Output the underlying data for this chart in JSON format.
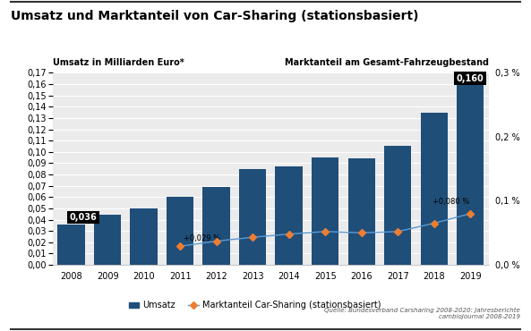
{
  "title": "Umsatz und Marktanteil von Car-Sharing (stationsbasiert)",
  "years": [
    2008,
    2009,
    2010,
    2011,
    2012,
    2013,
    2014,
    2015,
    2016,
    2017,
    2018,
    2019
  ],
  "umsatz": [
    0.036,
    0.044,
    0.05,
    0.06,
    0.069,
    0.085,
    0.087,
    0.095,
    0.094,
    0.105,
    0.135,
    0.16
  ],
  "marktanteil_ratio": [
    null,
    null,
    null,
    0.00029,
    0.00037,
    0.00043,
    0.00048,
    0.00052,
    0.0005,
    0.00052,
    0.00065,
    0.0008
  ],
  "bar_color": "#1F4E79",
  "line_color": "#5B9BD5",
  "marker_color": "#ED7D31",
  "ylabel_left": "Umsatz in Milliarden Euro*",
  "ylabel_right": "Marktanteil am Gesamt-Fahrzeugbestand",
  "ylim_left": [
    0,
    0.17
  ],
  "ylim_right": [
    0,
    0.003
  ],
  "yticks_left": [
    0.0,
    0.01,
    0.02,
    0.03,
    0.04,
    0.05,
    0.06,
    0.07,
    0.08,
    0.09,
    0.1,
    0.11,
    0.12,
    0.13,
    0.14,
    0.15,
    0.16,
    0.17
  ],
  "yticks_right_vals": [
    0.0,
    0.001,
    0.002,
    0.003
  ],
  "yticks_right_labels": [
    "0,0 %",
    "0,1 %",
    "0,2 %",
    "0,3 %"
  ],
  "annotation_2008": "0,036",
  "annotation_2019": "0,160",
  "annotation_2011": "+0,029 %",
  "annotation_2019_line": "+0,080 %",
  "legend_bar": "Umsatz",
  "legend_line": "Marktanteil Car-Sharing (stationsbasiert)",
  "source": "Quelle: Bundesverband Carsharing 2008-2020: Jahresberichte\ncambioJournal 2008-2019",
  "background_color": "#FFFFFF",
  "plot_bg_color": "#EBEBEB",
  "grid_color": "#FFFFFF",
  "title_fontsize": 10,
  "label_fontsize": 7,
  "tick_fontsize": 7,
  "source_fontsize": 5
}
